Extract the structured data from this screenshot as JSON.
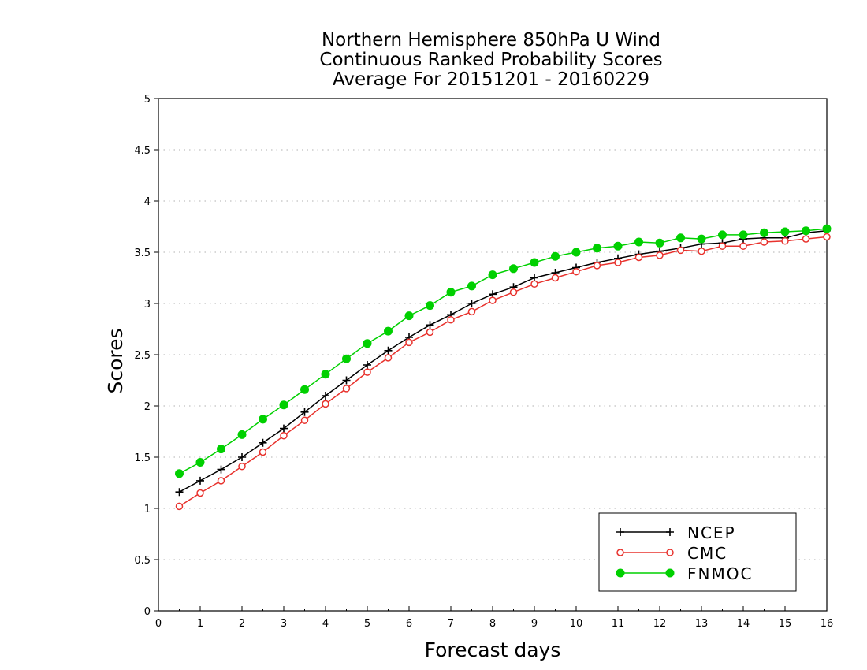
{
  "chart_data": {
    "type": "line",
    "title_lines": [
      "Northern Hemisphere 850hPa U Wind",
      "Continuous Ranked Probability Scores",
      "Average For 20151201 - 20160229"
    ],
    "xlabel": "Forecast days",
    "ylabel": "Scores",
    "xlim": [
      0,
      16
    ],
    "ylim": [
      0,
      5
    ],
    "xticks": [
      0,
      1,
      2,
      3,
      4,
      5,
      6,
      7,
      8,
      9,
      10,
      11,
      12,
      13,
      14,
      15,
      16
    ],
    "xtick_labels": [
      "0",
      "1",
      "2",
      "3",
      "4",
      "5",
      "6",
      "7",
      "8",
      "9",
      "10",
      "11",
      "12",
      "13",
      "14",
      "15",
      "16"
    ],
    "yticks": [
      0,
      0.5,
      1,
      1.5,
      2,
      2.5,
      3,
      3.5,
      4,
      4.5,
      5
    ],
    "ytick_labels": [
      "0",
      "0.5",
      "1",
      "1.5",
      "2",
      "2.5",
      "3",
      "3.5",
      "4",
      "4.5",
      "5"
    ],
    "grid": "horizontal dotted",
    "legend_position": "bottom-right",
    "x": [
      0.5,
      1,
      1.5,
      2,
      2.5,
      3,
      3.5,
      4,
      4.5,
      5,
      5.5,
      6,
      6.5,
      7,
      7.5,
      8,
      8.5,
      9,
      9.5,
      10,
      10.5,
      11,
      11.5,
      12,
      12.5,
      13,
      13.5,
      14,
      14.5,
      15,
      15.5,
      16
    ],
    "series": [
      {
        "name": "NCEP",
        "color": "#000000",
        "marker": "plus",
        "values": [
          1.16,
          1.27,
          1.38,
          1.5,
          1.64,
          1.78,
          1.94,
          2.1,
          2.25,
          2.4,
          2.54,
          2.67,
          2.79,
          2.89,
          3.0,
          3.09,
          3.16,
          3.25,
          3.3,
          3.35,
          3.4,
          3.44,
          3.48,
          3.51,
          3.54,
          3.58,
          3.59,
          3.63,
          3.64,
          3.64,
          3.69,
          3.71
        ]
      },
      {
        "name": "CMC",
        "color": "#e8322d",
        "marker": "open-circle",
        "values": [
          1.02,
          1.15,
          1.27,
          1.41,
          1.55,
          1.71,
          1.86,
          2.02,
          2.17,
          2.33,
          2.47,
          2.62,
          2.72,
          2.84,
          2.92,
          3.03,
          3.11,
          3.19,
          3.25,
          3.31,
          3.37,
          3.4,
          3.45,
          3.47,
          3.52,
          3.51,
          3.56,
          3.56,
          3.6,
          3.61,
          3.63,
          3.65
        ]
      },
      {
        "name": "FNMOC",
        "color": "#00d000",
        "marker": "filled-circle",
        "values": [
          1.34,
          1.45,
          1.58,
          1.72,
          1.87,
          2.01,
          2.16,
          2.31,
          2.46,
          2.61,
          2.73,
          2.88,
          2.98,
          3.11,
          3.17,
          3.28,
          3.34,
          3.4,
          3.46,
          3.5,
          3.54,
          3.56,
          3.6,
          3.59,
          3.64,
          3.63,
          3.67,
          3.67,
          3.69,
          3.7,
          3.71,
          3.73
        ]
      }
    ],
    "colors": {
      "background": "#ffffff",
      "axis": "#000000",
      "grid": "#b0b0b0"
    }
  }
}
